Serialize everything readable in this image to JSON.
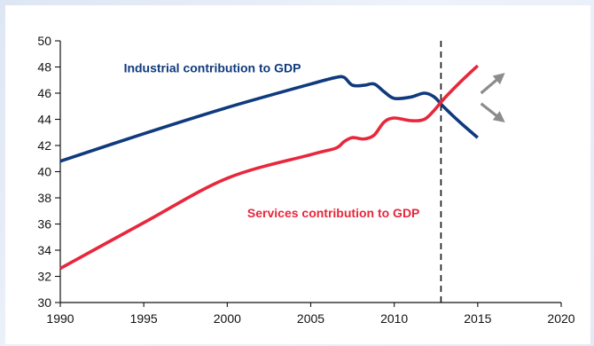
{
  "chart_data": {
    "type": "line",
    "title": "",
    "xlabel": "",
    "ylabel": "",
    "xlim": [
      1990,
      2020
    ],
    "ylim": [
      30,
      50
    ],
    "x_ticks": [
      1990,
      1995,
      2000,
      2005,
      2010,
      2015,
      2020
    ],
    "y_ticks": [
      30,
      32,
      34,
      36,
      38,
      40,
      42,
      44,
      46,
      48,
      50
    ],
    "grid": false,
    "legend": "none",
    "vertical_marker_x": 2012.8,
    "series": [
      {
        "name": "Industrial contribution to GDP",
        "color": "#0f3a7d",
        "label_position": [
          1993.8,
          47.6
        ],
        "x": [
          1990,
          1995,
          2000,
          2005,
          2006.5,
          2007,
          2007.5,
          2008.2,
          2008.8,
          2009.4,
          2010,
          2011,
          2011.8,
          2012.4,
          2013,
          2014,
          2015
        ],
        "y": [
          40.8,
          42.9,
          44.9,
          46.7,
          47.2,
          47.2,
          46.6,
          46.6,
          46.7,
          46.1,
          45.6,
          45.7,
          46.0,
          45.7,
          44.9,
          43.7,
          42.6
        ]
      },
      {
        "name": "Services contribution to GDP",
        "color": "#e8273c",
        "label_position": [
          2001.2,
          36.5
        ],
        "x": [
          1990,
          1995,
          2000,
          2005,
          2006.5,
          2007,
          2007.5,
          2008.2,
          2008.8,
          2009.4,
          2010,
          2011,
          2011.8,
          2012.4,
          2013,
          2014,
          2015
        ],
        "y": [
          32.6,
          36.1,
          39.5,
          41.3,
          41.8,
          42.3,
          42.6,
          42.5,
          42.8,
          43.8,
          44.1,
          43.9,
          44.0,
          44.7,
          45.6,
          46.9,
          48.1
        ]
      }
    ],
    "projection_arrows": {
      "color": "#8c8c8c",
      "items": [
        {
          "from": [
            2015.2,
            46.0
          ],
          "to": [
            2016.4,
            47.3
          ]
        },
        {
          "from": [
            2015.2,
            45.2
          ],
          "to": [
            2016.4,
            44.0
          ]
        }
      ]
    }
  }
}
